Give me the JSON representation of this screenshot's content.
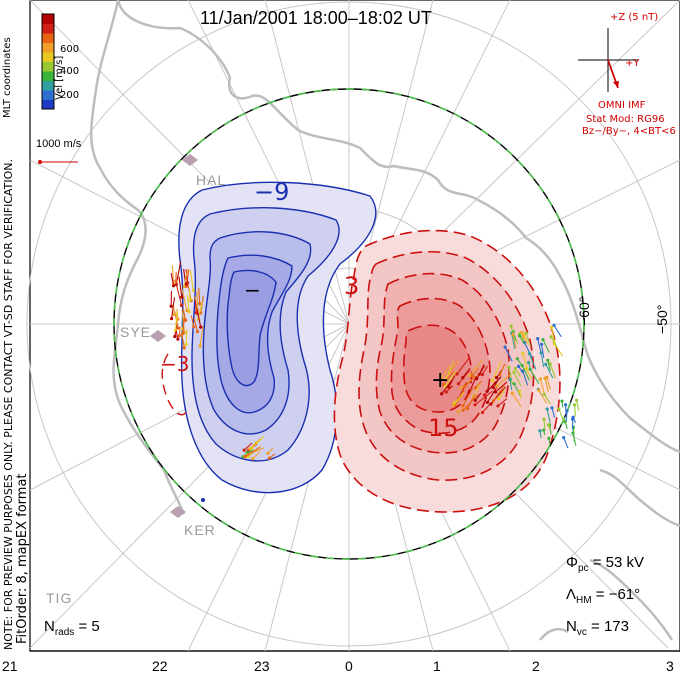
{
  "title": "11/Jan/2001  18:00–18:02 UT",
  "colorbar": {
    "label": "Vel [m/s]",
    "ticks": [
      "600",
      "400",
      "200"
    ],
    "colors": [
      "#1e3cc8",
      "#2e6ecf",
      "#2fa0a0",
      "#3cb43c",
      "#9ac832",
      "#e6c81e",
      "#f0a028",
      "#e66414",
      "#d21e14",
      "#b40000"
    ]
  },
  "coord_label": "MLT coordinates",
  "velocity_reference": "1000 m/s",
  "imf": {
    "scale_label": "+Z (5 nT)",
    "y_label": "+Y",
    "source_label": "OMNI IMF",
    "model_label": "Stat Mod: RG96",
    "condition_label": "Bz−/By−, 4<BT<6"
  },
  "side_note_1": "NOTE: FOR PREVIEW PURPOSES ONLY. PLEASE CONTACT VT-SD STAFF FOR VERIFICATION.",
  "side_note_2": "FitOrder: 8, mapEX format",
  "stations": [
    "HAL",
    "SYE",
    "KER",
    "TIG"
  ],
  "latitude_labels": [
    "−60°",
    "−50°"
  ],
  "contour_labels": [
    "−9",
    "−3",
    "3",
    "15",
    "−",
    "+"
  ],
  "mlt_labels": [
    "21",
    "22",
    "23",
    "0",
    "1",
    "2",
    "3"
  ],
  "stats": {
    "n_rads_label": "N",
    "n_rads_sub": "rads",
    "n_rads_value": "= 5",
    "phi_label": "Φ",
    "phi_sub": "pc",
    "phi_value": "= 53 kV",
    "lambda_label": "Λ",
    "lambda_sub": "HM",
    "lambda_value": "= −61°",
    "nvc_label": "N",
    "nvc_sub": "vc",
    "nvc_value": "= 173"
  },
  "colors": {
    "negative_contour": "#1a2fb0",
    "positive_contour": "#cc1010",
    "boundary_dash": "#4cc24c",
    "coastline": "#bdbdbd"
  }
}
